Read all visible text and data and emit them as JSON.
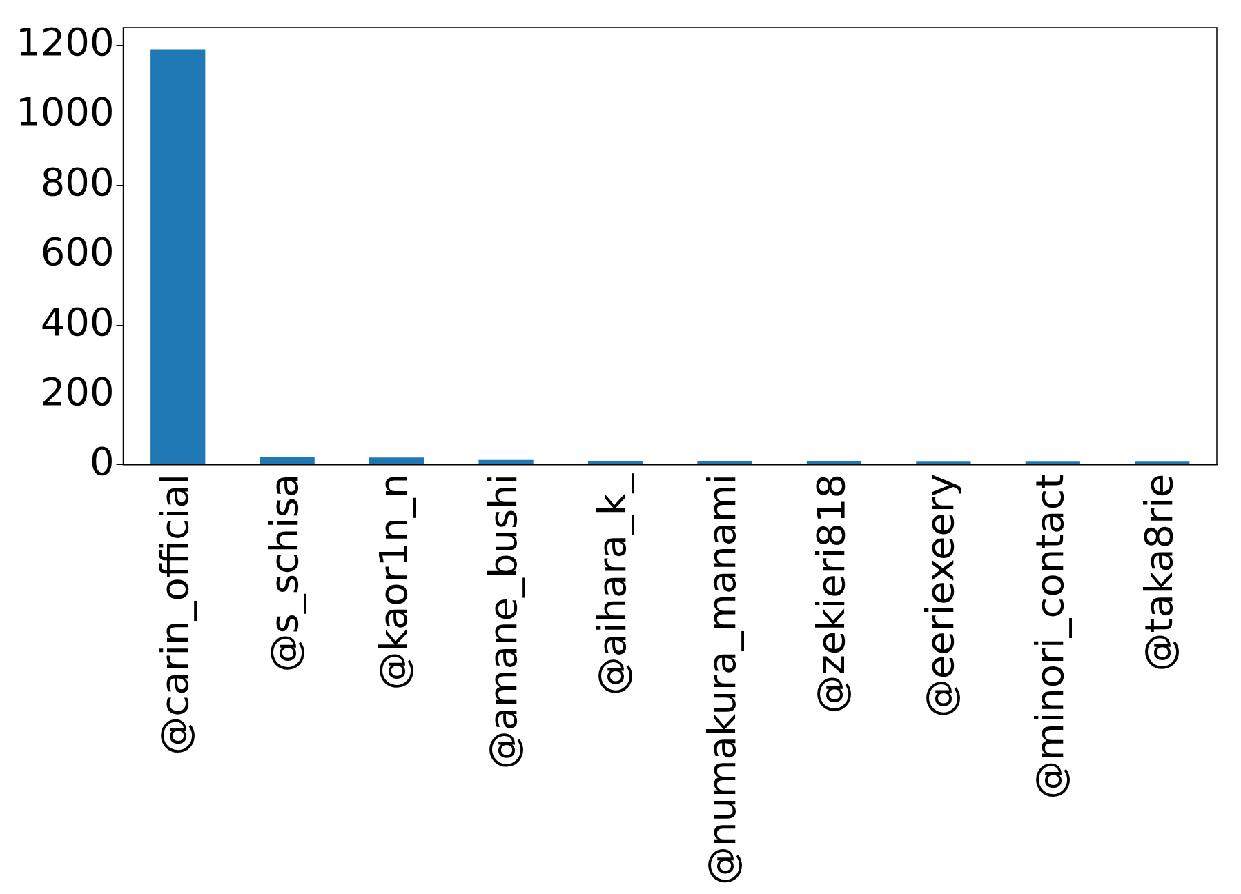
{
  "chart_data": {
    "type": "bar",
    "categories": [
      "@carin_official",
      "@s_schisa",
      "@kaor1n_n",
      "@amane_bushi",
      "@aihara_k_",
      "@numakura_manami",
      "@zekieri818",
      "@eeriexeery",
      "@minori_contact",
      "@taka8rie"
    ],
    "values": [
      1188,
      23,
      21,
      14,
      11,
      11,
      11,
      9,
      9,
      9
    ],
    "color": "#1f77b4",
    "ylim": [
      0,
      1250
    ],
    "yticks": [
      0,
      200,
      400,
      600,
      800,
      1000,
      1200
    ],
    "grid": false,
    "legend": false
  }
}
